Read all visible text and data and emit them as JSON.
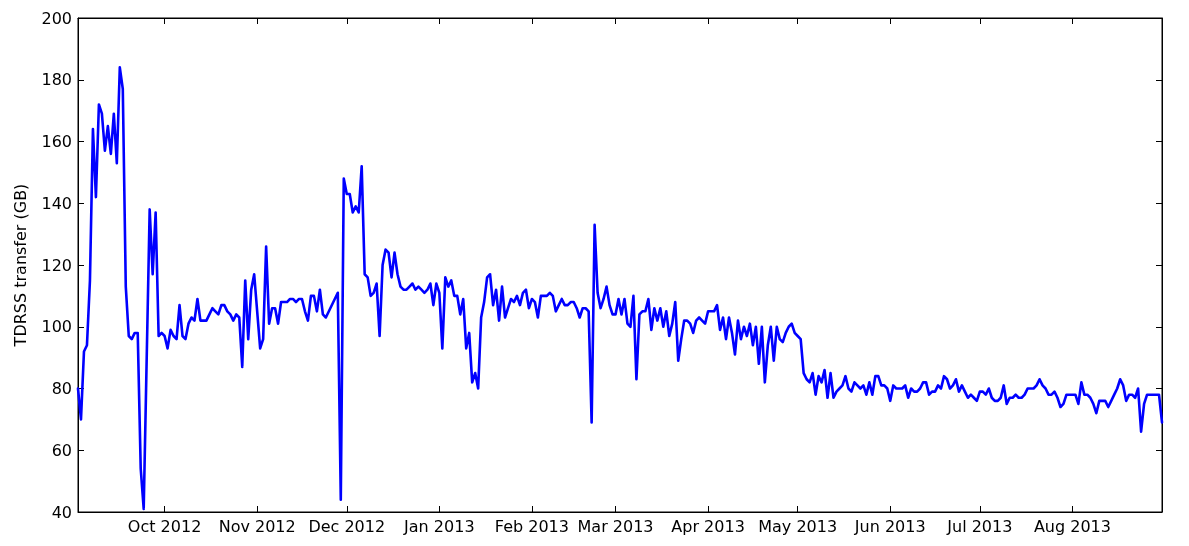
{
  "chart_data": {
    "type": "line",
    "ylabel": "TDRSS transfer (GB)",
    "color": "#0000ff",
    "xlim": [
      "2012-09-02",
      "2013-08-31"
    ],
    "ylim": [
      40,
      200
    ],
    "xticks": [
      {
        "value": "2012-10-01",
        "label": "Oct 2012"
      },
      {
        "value": "2012-11-01",
        "label": "Nov 2012"
      },
      {
        "value": "2012-12-01",
        "label": "Dec 2012"
      },
      {
        "value": "2013-01-01",
        "label": "Jan 2013"
      },
      {
        "value": "2013-02-01",
        "label": "Feb 2013"
      },
      {
        "value": "2013-03-01",
        "label": "Mar 2013"
      },
      {
        "value": "2013-04-01",
        "label": "Apr 2013"
      },
      {
        "value": "2013-05-01",
        "label": "May 2013"
      },
      {
        "value": "2013-06-01",
        "label": "Jun 2013"
      },
      {
        "value": "2013-07-01",
        "label": "Jul 2013"
      },
      {
        "value": "2013-08-01",
        "label": "Aug 2013"
      }
    ],
    "yticks": [
      40,
      60,
      80,
      100,
      120,
      140,
      160,
      180,
      200
    ],
    "x": [
      "2012-09-02",
      "2012-09-03",
      "2012-09-04",
      "2012-09-05",
      "2012-09-06",
      "2012-09-07",
      "2012-09-08",
      "2012-09-09",
      "2012-09-10",
      "2012-09-11",
      "2012-09-12",
      "2012-09-13",
      "2012-09-14",
      "2012-09-15",
      "2012-09-16",
      "2012-09-17",
      "2012-09-18",
      "2012-09-19",
      "2012-09-20",
      "2012-09-21",
      "2012-09-22",
      "2012-09-23",
      "2012-09-24",
      "2012-09-26",
      "2012-09-27",
      "2012-09-28",
      "2012-09-29",
      "2012-09-30",
      "2012-10-01",
      "2012-10-02",
      "2012-10-03",
      "2012-10-04",
      "2012-10-05",
      "2012-10-06",
      "2012-10-07",
      "2012-10-08",
      "2012-10-09",
      "2012-10-10",
      "2012-10-11",
      "2012-10-12",
      "2012-10-13",
      "2012-10-14",
      "2012-10-15",
      "2012-10-16",
      "2012-10-17",
      "2012-10-18",
      "2012-10-19",
      "2012-10-20",
      "2012-10-21",
      "2012-10-22",
      "2012-10-23",
      "2012-10-24",
      "2012-10-25",
      "2012-10-26",
      "2012-10-27",
      "2012-10-28",
      "2012-10-29",
      "2012-10-30",
      "2012-10-31",
      "2012-11-01",
      "2012-11-02",
      "2012-11-03",
      "2012-11-04",
      "2012-11-05",
      "2012-11-06",
      "2012-11-07",
      "2012-11-08",
      "2012-11-09",
      "2012-11-10",
      "2012-11-11",
      "2012-11-12",
      "2012-11-13",
      "2012-11-14",
      "2012-11-15",
      "2012-11-16",
      "2012-11-17",
      "2012-11-18",
      "2012-11-19",
      "2012-11-20",
      "2012-11-21",
      "2012-11-22",
      "2012-11-23",
      "2012-11-24",
      "2012-11-28",
      "2012-11-29",
      "2012-11-30",
      "2012-12-01",
      "2012-12-02",
      "2012-12-03",
      "2012-12-04",
      "2012-12-05",
      "2012-12-06",
      "2012-12-07",
      "2012-12-08",
      "2012-12-09",
      "2012-12-10",
      "2012-12-11",
      "2012-12-12",
      "2012-12-13",
      "2012-12-14",
      "2012-12-15",
      "2012-12-16",
      "2012-12-17",
      "2012-12-18",
      "2012-12-19",
      "2012-12-20",
      "2012-12-21",
      "2012-12-22",
      "2012-12-23",
      "2012-12-24",
      "2012-12-25",
      "2012-12-26",
      "2012-12-27",
      "2012-12-28",
      "2012-12-29",
      "2012-12-30",
      "2012-12-31",
      "2013-01-01",
      "2013-01-02",
      "2013-01-03",
      "2013-01-04",
      "2013-01-05",
      "2013-01-06",
      "2013-01-07",
      "2013-01-08",
      "2013-01-09",
      "2013-01-10",
      "2013-01-11",
      "2013-01-12",
      "2013-01-13",
      "2013-01-14",
      "2013-01-15",
      "2013-01-16",
      "2013-01-17",
      "2013-01-18",
      "2013-01-19",
      "2013-01-20",
      "2013-01-21",
      "2013-01-22",
      "2013-01-23",
      "2013-01-24",
      "2013-01-25",
      "2013-01-26",
      "2013-01-27",
      "2013-01-28",
      "2013-01-29",
      "2013-01-30",
      "2013-01-31",
      "2013-02-01",
      "2013-02-02",
      "2013-02-03",
      "2013-02-04",
      "2013-02-05",
      "2013-02-06",
      "2013-02-07",
      "2013-02-08",
      "2013-02-09",
      "2013-02-10",
      "2013-02-11",
      "2013-02-12",
      "2013-02-13",
      "2013-02-14",
      "2013-02-15",
      "2013-02-16",
      "2013-02-17",
      "2013-02-18",
      "2013-02-19",
      "2013-02-20",
      "2013-02-21",
      "2013-02-22",
      "2013-02-23",
      "2013-02-24",
      "2013-02-25",
      "2013-02-26",
      "2013-02-27",
      "2013-02-28",
      "2013-03-01",
      "2013-03-02",
      "2013-03-03",
      "2013-03-04",
      "2013-03-05",
      "2013-03-06",
      "2013-03-07",
      "2013-03-08",
      "2013-03-09",
      "2013-03-10",
      "2013-03-11",
      "2013-03-12",
      "2013-03-13",
      "2013-03-14",
      "2013-03-15",
      "2013-03-16",
      "2013-03-17",
      "2013-03-18",
      "2013-03-19",
      "2013-03-20",
      "2013-03-21",
      "2013-03-22",
      "2013-03-23",
      "2013-03-24",
      "2013-03-25",
      "2013-03-26",
      "2013-03-27",
      "2013-03-28",
      "2013-03-29",
      "2013-03-30",
      "2013-03-31",
      "2013-04-01",
      "2013-04-02",
      "2013-04-03",
      "2013-04-04",
      "2013-04-05",
      "2013-04-06",
      "2013-04-07",
      "2013-04-08",
      "2013-04-09",
      "2013-04-10",
      "2013-04-11",
      "2013-04-12",
      "2013-04-13",
      "2013-04-14",
      "2013-04-15",
      "2013-04-16",
      "2013-04-17",
      "2013-04-18",
      "2013-04-19",
      "2013-04-20",
      "2013-04-21",
      "2013-04-22",
      "2013-04-23",
      "2013-04-24",
      "2013-04-25",
      "2013-04-26",
      "2013-04-27",
      "2013-04-28",
      "2013-04-29",
      "2013-04-30",
      "2013-05-01",
      "2013-05-02",
      "2013-05-03",
      "2013-05-04",
      "2013-05-05",
      "2013-05-06",
      "2013-05-07",
      "2013-05-08",
      "2013-05-09",
      "2013-05-10",
      "2013-05-11",
      "2013-05-12",
      "2013-05-13",
      "2013-05-14",
      "2013-05-15",
      "2013-05-16",
      "2013-05-17",
      "2013-05-18",
      "2013-05-19",
      "2013-05-20",
      "2013-05-21",
      "2013-05-22",
      "2013-05-23",
      "2013-05-24",
      "2013-05-25",
      "2013-05-26",
      "2013-05-27",
      "2013-05-28",
      "2013-05-29",
      "2013-05-30",
      "2013-05-31",
      "2013-06-01",
      "2013-06-02",
      "2013-06-03",
      "2013-06-04",
      "2013-06-05",
      "2013-06-06",
      "2013-06-07",
      "2013-06-08",
      "2013-06-09",
      "2013-06-10",
      "2013-06-11",
      "2013-06-12",
      "2013-06-13",
      "2013-06-14",
      "2013-06-15",
      "2013-06-16",
      "2013-06-17",
      "2013-06-18",
      "2013-06-19",
      "2013-06-20",
      "2013-06-21",
      "2013-06-22",
      "2013-06-23",
      "2013-06-24",
      "2013-06-25",
      "2013-06-26",
      "2013-06-27",
      "2013-06-28",
      "2013-06-29",
      "2013-06-30",
      "2013-07-01",
      "2013-07-02",
      "2013-07-03",
      "2013-07-04",
      "2013-07-05",
      "2013-07-06",
      "2013-07-07",
      "2013-07-08",
      "2013-07-09",
      "2013-07-10",
      "2013-07-11",
      "2013-07-12",
      "2013-07-13",
      "2013-07-14",
      "2013-07-15",
      "2013-07-16",
      "2013-07-17",
      "2013-07-18",
      "2013-07-19",
      "2013-07-20",
      "2013-07-21",
      "2013-07-22",
      "2013-07-23",
      "2013-07-24",
      "2013-07-25",
      "2013-07-26",
      "2013-07-27",
      "2013-07-28",
      "2013-07-29",
      "2013-07-30",
      "2013-07-31",
      "2013-08-01",
      "2013-08-02",
      "2013-08-03",
      "2013-08-04",
      "2013-08-05",
      "2013-08-06",
      "2013-08-07",
      "2013-08-08",
      "2013-08-09",
      "2013-08-10",
      "2013-08-11",
      "2013-08-12",
      "2013-08-13",
      "2013-08-14",
      "2013-08-15",
      "2013-08-16",
      "2013-08-17",
      "2013-08-18",
      "2013-08-19",
      "2013-08-20",
      "2013-08-21",
      "2013-08-22",
      "2013-08-23",
      "2013-08-24",
      "2013-08-25",
      "2013-08-26",
      "2013-08-27",
      "2013-08-28",
      "2013-08-29",
      "2013-08-30",
      "2013-08-31"
    ],
    "values": [
      80,
      70,
      92,
      94,
      115,
      164,
      142,
      172,
      169,
      157,
      165,
      156,
      169,
      153,
      184,
      177,
      113,
      97,
      96,
      98,
      98,
      54,
      41,
      138,
      117,
      137,
      97,
      98,
      97,
      93,
      99,
      97,
      96,
      107,
      97,
      96,
      101,
      103,
      102,
      109,
      102,
      102,
      102,
      104,
      106,
      105,
      104,
      107,
      107,
      105,
      104,
      102,
      104,
      103,
      87,
      115,
      96,
      112,
      117,
      105,
      93,
      96,
      126,
      101,
      106,
      106,
      101,
      108,
      108,
      108,
      109,
      109,
      108,
      109,
      109,
      105,
      102,
      110,
      110,
      105,
      112,
      104,
      103,
      111,
      44,
      148,
      143,
      143,
      137,
      139,
      137,
      152,
      117,
      116,
      110,
      111,
      114,
      97,
      120,
      125,
      124,
      116,
      124,
      117,
      113,
      112,
      112,
      113,
      114,
      112,
      113,
      112,
      111,
      112,
      114,
      107,
      114,
      111,
      93,
      116,
      113,
      115,
      110,
      110,
      104,
      109,
      93,
      98,
      82,
      85,
      80,
      103,
      108,
      116,
      117,
      107,
      112,
      102,
      113,
      103,
      106,
      109,
      108,
      110,
      107,
      111,
      112,
      106,
      109,
      108,
      103,
      110,
      110,
      110,
      111,
      110,
      105,
      107,
      109,
      107,
      107,
      108,
      108,
      106,
      103,
      106,
      106,
      105,
      69,
      133,
      111,
      106,
      109,
      113,
      107,
      104,
      104,
      109,
      104,
      109,
      101,
      100,
      110,
      83,
      104,
      105,
      105,
      109,
      99,
      106,
      102,
      106,
      100,
      105,
      97,
      101,
      108,
      89,
      96,
      102,
      102,
      101,
      98,
      102,
      103,
      102,
      101,
      105,
      105,
      105,
      107,
      99,
      103,
      96,
      103,
      98,
      91,
      102,
      96,
      100,
      97,
      101,
      94,
      100,
      88,
      100,
      82,
      94,
      100,
      89,
      100,
      96,
      95,
      98,
      100,
      101,
      98,
      97,
      96,
      85,
      83,
      82,
      85,
      78,
      84,
      82,
      86,
      77,
      85,
      77,
      79,
      80,
      81,
      84,
      80,
      79,
      82,
      81,
      80,
      81,
      78,
      82,
      78,
      84,
      84,
      81,
      81,
      80,
      76,
      81,
      80,
      80,
      80,
      81,
      77,
      80,
      79,
      79,
      80,
      82,
      82,
      78,
      79,
      79,
      81,
      80,
      84,
      83,
      80,
      81,
      83,
      79,
      81,
      79,
      77,
      78,
      77,
      76,
      79,
      79,
      78,
      80,
      77,
      76,
      76,
      77,
      81,
      75,
      77,
      77,
      78,
      77,
      77,
      78,
      80,
      80,
      80,
      81,
      83,
      81,
      80,
      78,
      78,
      79,
      77,
      74,
      75,
      78,
      78,
      78,
      78,
      75,
      82,
      78,
      78,
      77,
      75,
      72,
      76,
      76,
      76,
      74,
      76,
      78,
      80,
      83,
      81,
      76,
      78,
      78,
      77,
      80,
      66,
      75,
      78,
      78,
      78,
      78,
      78,
      69
    ]
  }
}
